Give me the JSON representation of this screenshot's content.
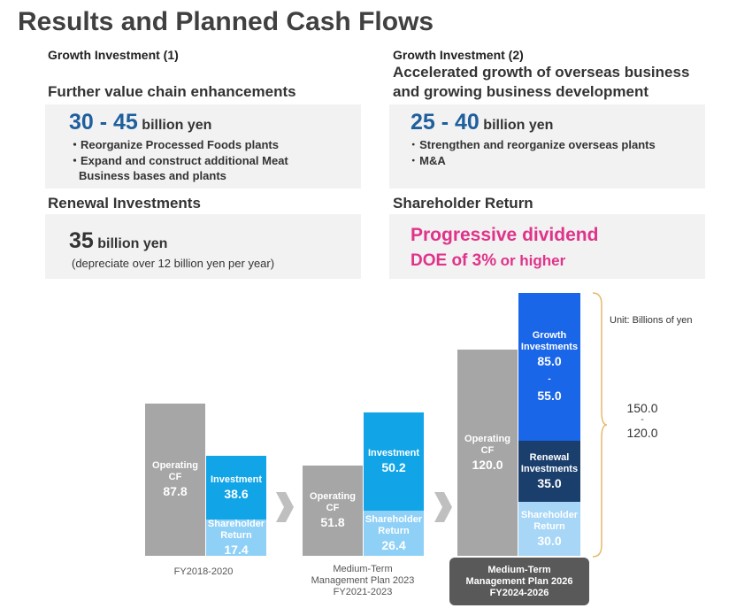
{
  "title": "Results and Planned Cash Flows",
  "growth1": {
    "header": "Growth Investment (1)",
    "heading": "Further value chain enhancements",
    "range": "30 - 45",
    "unit": "billion yen",
    "bullets": [
      "・Reorganize Processed Foods plants",
      "・Expand and construct additional Meat",
      "Business bases and plants"
    ]
  },
  "growth2": {
    "header": "Growth Investment (2)",
    "heading_line1": "Accelerated growth of overseas business",
    "heading_line2": "and growing business development",
    "range": "25 - 40",
    "unit": "billion yen",
    "bullets": [
      "･ Strengthen and reorganize overseas plants",
      "･ M&A"
    ]
  },
  "renewal": {
    "heading": "Renewal Investments",
    "amount": "35",
    "unit": "billion yen",
    "note": "(depreciate over 12 billion yen per year)"
  },
  "shareholder": {
    "heading": "Shareholder Return",
    "line1": "Progressive dividend",
    "line2_main": "DOE of 3%",
    "line2_tail": "or higher"
  },
  "unit_note": "Unit: Billions of yen",
  "brace_label": {
    "top": "150.0",
    "sep": "-",
    "bottom": "120.0"
  },
  "periods": {
    "p1": "FY2018-2020",
    "p2_l1": "Medium-Term",
    "p2_l2": "Management Plan 2023",
    "p2_l3": "FY2021-2023",
    "p3_l1": "Medium-Term",
    "p3_l2": "Management Plan 2026",
    "p3_l3": "FY2024-2026"
  },
  "colors": {
    "operating": "#a6a6a6",
    "investment": "#11a5e8",
    "shareholder": "#8fd0f7",
    "growth": "#1a66e8",
    "renewal": "#1b3f6d",
    "shareholder_future": "#a7d6f7",
    "accent_pink": "#e0338a",
    "title_blue": "#1f5f9e"
  },
  "chart_data": {
    "type": "bar",
    "categories": [
      "FY2018-2020",
      "FY2021-2023",
      "FY2024-2026"
    ],
    "bars": {
      "g1_op": {
        "label": "Operating\nCF",
        "value": 87.8,
        "text": "87.8"
      },
      "g1_inv": {
        "label": "Investment",
        "value": 38.6,
        "text": "38.6"
      },
      "g1_sh": {
        "label": "Shareholder\nReturn",
        "value": 17.4,
        "text": "17.4"
      },
      "g2_op": {
        "label": "Operating\nCF",
        "value": 51.8,
        "text": "51.8"
      },
      "g2_inv": {
        "label": "Investment",
        "value": 50.2,
        "text": "50.2"
      },
      "g2_sh": {
        "label": "Shareholder\nReturn",
        "value": 26.4,
        "text": "26.4"
      },
      "g3_op": {
        "label": "Operating\nCF",
        "value": 120.0,
        "text": "120.0"
      },
      "g3_growth": {
        "label": "Growth\nInvestments",
        "value": 85.0,
        "text": "85.0\n-\n55.0"
      },
      "g3_ren": {
        "label": "Renewal\nInvestments",
        "value": 35.0,
        "text": "35.0"
      },
      "g3_sh": {
        "label": "Shareholder\nReturn",
        "value": 30.0,
        "text": "30.0"
      }
    }
  }
}
